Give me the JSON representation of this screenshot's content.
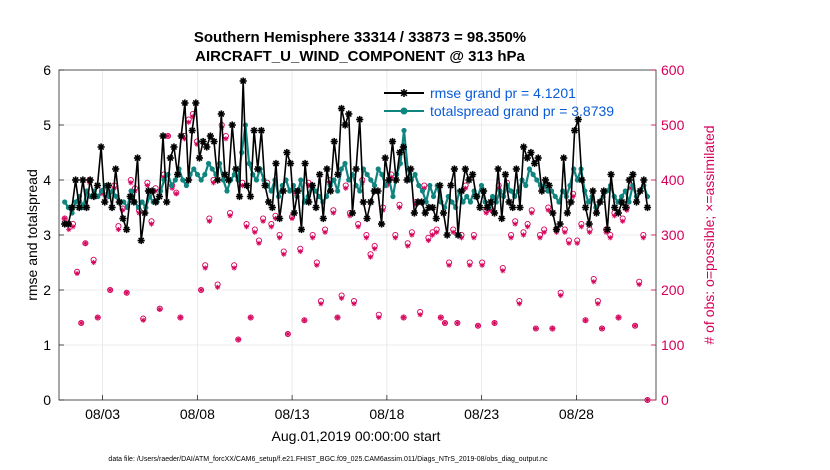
{
  "chart_data": {
    "type": "line",
    "title": "Southern Hemisphere 33314 / 33873 = 98.350%",
    "subtitle": "AIRCRAFT_U_WIND_COMPONENT @ 313 hPa",
    "xlabel": "Aug.01,2019 00:00:00 start",
    "ylabel": "rmse and totalspread",
    "y2label": "# of obs: o=possible; ×=assimilated",
    "footnote": "data file: /Users/raeder/DAI/ATM_forcXX/CAM6_setup/f.e21.FHIST_BGC.f09_025.CAM6assim.011/Diags_NTrS_2019-08/obs_diag_output.nc",
    "xlim": [
      0.7,
      32.2
    ],
    "ylim": [
      0,
      6
    ],
    "y2lim": [
      0,
      600
    ],
    "xticks": [
      3,
      8,
      13,
      18,
      23,
      28
    ],
    "xtick_labels": [
      "08/03",
      "08/08",
      "08/13",
      "08/18",
      "08/23",
      "08/28"
    ],
    "yticks": [
      "0",
      "1",
      "2",
      "3",
      "4",
      "5",
      "6"
    ],
    "y2ticks": [
      "0",
      "100",
      "200",
      "300",
      "400",
      "500",
      "600"
    ],
    "grid": true,
    "legend_position": "top-right",
    "series": [
      {
        "name": "rmse grand pr = 4.1201",
        "color": "#000000",
        "marker": "asterisk",
        "values": [
          3.2,
          3.2,
          3.5,
          4.0,
          3.5,
          4.0,
          3.5,
          4.0,
          3.7,
          3.9,
          4.6,
          3.6,
          3.9,
          3.5,
          4.2,
          3.6,
          3.3,
          3.1,
          3.7,
          3.6,
          4.4,
          2.9,
          3.4,
          3.8,
          3.8,
          3.6,
          3.7,
          4.8,
          3.6,
          4.4,
          4.6,
          4.1,
          4.8,
          5.4,
          4.0,
          4.9,
          5.4,
          4.4,
          4.7,
          4.6,
          4.8,
          4.7,
          4.0,
          5.2,
          4.1,
          4.0,
          5.0,
          4.2,
          3.7,
          5.8,
          3.9,
          3.7,
          4.9,
          4.2,
          4.9,
          3.9,
          3.6,
          3.5,
          4.3,
          3.3,
          3.8,
          4.5,
          4.3,
          3.4,
          3.8,
          3.1,
          4.3,
          3.6,
          3.9,
          3.5,
          4.1,
          3.3,
          4.2,
          3.8,
          4.7,
          4.1,
          5.3,
          5.0,
          5.2,
          3.4,
          4.2,
          5.1,
          3.6,
          3.3,
          3.6,
          3.8,
          3.8,
          3.2,
          4.4,
          4.0,
          4.7,
          4.0,
          4.5,
          4.6,
          4.0,
          4.2,
          3.4,
          3.6,
          3.6,
          3.4,
          3.5,
          3.5,
          3.3,
          3.9,
          3.4,
          3.0,
          3.9,
          4.2,
          3.0,
          3.8,
          4.2,
          4.0,
          4.1,
          3.7,
          3.5,
          3.8,
          3.5,
          3.6,
          3.4,
          4.2,
          3.3,
          4.1,
          3.6,
          3.5,
          4.2,
          3.5,
          4.6,
          4.4,
          4.5,
          4.3,
          4.4,
          3.8,
          4.0,
          3.9,
          3.4,
          3.1,
          3.2,
          4.4,
          3.4,
          3.6,
          4.9,
          5.1,
          4.0,
          3.5,
          3.2,
          3.8,
          3.4,
          3.6,
          3.8,
          3.1,
          4.1,
          3.5,
          3.4,
          3.6,
          3.5,
          4.0,
          4.1,
          3.6,
          3.8,
          4.0,
          3.5
        ]
      },
      {
        "name": "totalspread grand pr = 3.8739",
        "color": "#10857f",
        "marker": "dot",
        "values": [
          3.6,
          3.5,
          3.4,
          3.6,
          3.7,
          3.5,
          3.8,
          3.7,
          3.8,
          3.7,
          3.8,
          3.9,
          3.7,
          3.8,
          3.7,
          3.6,
          3.6,
          3.5,
          3.8,
          3.6,
          3.5,
          3.6,
          3.5,
          3.7,
          3.6,
          3.6,
          3.8,
          4.0,
          4.1,
          3.9,
          4.0,
          4.2,
          4.0,
          3.9,
          4.1,
          4.2,
          4.1,
          4.0,
          4.1,
          4.3,
          4.2,
          4.1,
          4.3,
          4.0,
          3.8,
          4.0,
          4.1,
          4.0,
          4.5,
          5.0,
          4.3,
          4.1,
          4.0,
          4.2,
          4.0,
          3.9,
          3.8,
          4.0,
          3.7,
          3.9,
          4.0,
          3.8,
          3.9,
          3.7,
          4.0,
          3.6,
          3.7,
          3.9,
          3.8,
          3.7,
          3.6,
          3.7,
          3.9,
          4.0,
          3.8,
          4.2,
          4.3,
          4.0,
          4.1,
          3.9,
          3.8,
          4.2,
          4.1,
          4.0,
          3.9,
          4.2,
          4.1,
          3.9,
          4.0,
          3.7,
          4.1,
          4.3,
          4.9,
          4.2,
          4.0,
          4.1,
          3.9,
          3.8,
          3.6,
          3.9,
          3.7,
          3.9,
          3.6,
          3.5,
          3.7,
          3.6,
          3.5,
          3.8,
          3.6,
          3.7,
          3.6,
          3.8,
          3.7,
          3.9,
          3.6,
          3.5,
          3.7,
          3.6,
          3.8,
          3.7,
          3.9,
          3.8,
          3.7,
          3.8,
          4.0,
          3.9,
          4.2,
          4.1,
          4.0,
          3.9,
          3.9,
          3.8,
          3.8,
          3.7,
          3.6,
          3.8,
          3.7,
          3.9,
          4.2,
          4.0,
          4.2,
          3.8,
          3.6,
          3.7,
          3.5,
          3.6,
          3.7,
          3.8,
          3.9,
          3.7,
          3.6,
          3.7,
          3.8,
          3.6,
          3.9,
          3.7,
          3.8,
          3.9,
          3.7
        ]
      },
      {
        "name": "# obs possible",
        "color": "#d5005a",
        "marker": "circle",
        "axis": "right",
        "values": [
          330,
          320,
          320,
          233,
          140,
          285,
          400,
          255,
          150,
          380,
          372,
          200,
          390,
          316,
          348,
          195,
          400,
          385,
          345,
          148,
          395,
          325,
          385,
          166,
          410,
          480,
          390,
          377,
          150,
          480,
          510,
          520,
          470,
          200,
          245,
          330,
          400,
          210,
          500,
          480,
          340,
          245,
          110,
          395,
          320,
          150,
          310,
          290,
          330,
          395,
          320,
          335,
          300,
          270,
          120,
          333,
          380,
          275,
          145,
          395,
          300,
          250,
          180,
          310,
          400,
          345,
          150,
          190,
          390,
          340,
          180,
          320,
          400,
          300,
          265,
          280,
          155,
          350,
          395,
          410,
          300,
          355,
          150,
          285,
          305,
          360,
          160,
          390,
          295,
          305,
          310,
          150,
          140,
          250,
          310,
          140,
          300,
          390,
          250,
          300,
          135,
          250,
          345,
          350,
          140,
          390,
          240,
          395,
          300,
          325,
          180,
          305,
          320,
          345,
          130,
          300,
          310,
          350,
          130,
          310,
          195,
          310,
          290,
          375,
          290,
          320,
          145,
          310,
          220,
          180,
          130,
          310,
          300,
          340,
          150,
          330,
          350,
          390,
          135,
          215,
          300,
          0
        ]
      },
      {
        "name": "# obs assimilated",
        "color": "#d5005a",
        "marker": "cross",
        "axis": "right",
        "values": [
          330,
          310,
          315,
          230,
          140,
          285,
          395,
          250,
          150,
          375,
          370,
          200,
          385,
          310,
          345,
          195,
          395,
          380,
          340,
          145,
          390,
          320,
          380,
          165,
          405,
          480,
          385,
          375,
          150,
          475,
          505,
          515,
          465,
          200,
          240,
          325,
          395,
          205,
          495,
          475,
          335,
          240,
          110,
          390,
          315,
          150,
          305,
          285,
          325,
          390,
          315,
          330,
          295,
          265,
          120,
          330,
          375,
          270,
          145,
          390,
          295,
          245,
          175,
          305,
          395,
          340,
          150,
          185,
          385,
          335,
          175,
          315,
          395,
          295,
          260,
          275,
          150,
          345,
          390,
          405,
          295,
          350,
          150,
          280,
          300,
          355,
          155,
          385,
          290,
          300,
          305,
          150,
          140,
          245,
          305,
          140,
          295,
          385,
          245,
          295,
          135,
          245,
          340,
          345,
          140,
          385,
          235,
          390,
          295,
          320,
          175,
          300,
          315,
          340,
          130,
          295,
          305,
          345,
          130,
          305,
          190,
          305,
          285,
          370,
          285,
          315,
          145,
          305,
          215,
          175,
          130,
          305,
          295,
          335,
          150,
          325,
          345,
          385,
          135,
          210,
          295,
          0
        ]
      }
    ]
  }
}
